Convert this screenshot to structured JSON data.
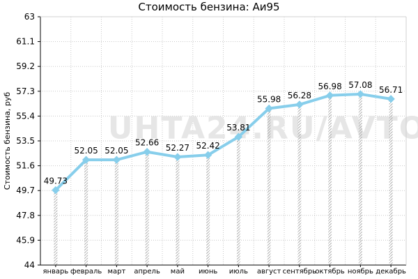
{
  "chart_data": {
    "type": "line",
    "title": "Стоимость бензина: Аи95",
    "ylabel": "Стоимость бензина, руб",
    "xlabel": "",
    "watermark": "UHTA24.RU/AVTO",
    "categories": [
      "январь",
      "февраль",
      "март",
      "апрель",
      "май",
      "июнь",
      "июль",
      "август",
      "сентябрь",
      "октябрь",
      "ноябрь",
      "декабрь"
    ],
    "series": [
      {
        "values": [
          49.73,
          52.05,
          52.05,
          52.66,
          52.27,
          52.42,
          53.81,
          55.98,
          56.28,
          56.98,
          57.08,
          56.71
        ],
        "labels": [
          "49.73",
          "52.05",
          "52.05",
          "52.66",
          "52.27",
          "52.42",
          "53.81",
          "55.98",
          "56.28",
          "56.98",
          "57.08",
          "56.71"
        ]
      }
    ],
    "ylim": [
      44,
      63
    ],
    "yticks": [
      44,
      45.9,
      47.8,
      49.7,
      51.6,
      53.5,
      55.4,
      57.3,
      59.2,
      61.1,
      63
    ],
    "yticklabels": [
      "44",
      "45.9",
      "47.8",
      "49.7",
      "51.6",
      "53.5",
      "55.4",
      "57.3",
      "59.2",
      "61.1",
      "63"
    ],
    "grid": true,
    "colors": {
      "line": "#87ceeb",
      "marker": "#87ceeb",
      "drop_lines": "#b0b0b0",
      "grid": "#c8c8c8",
      "axis": "#000000",
      "watermark": "#e6e6e6"
    }
  }
}
